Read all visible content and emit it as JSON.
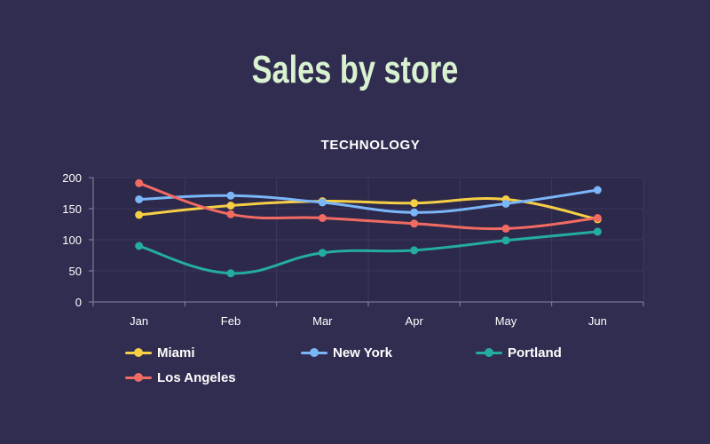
{
  "page": {
    "title": "Sales by store"
  },
  "chart_data": {
    "type": "line",
    "title": "TECHNOLOGY",
    "categories": [
      "Jan",
      "Feb",
      "Mar",
      "Apr",
      "May",
      "Jun"
    ],
    "ylim": [
      0,
      200
    ],
    "yticks": [
      0,
      50,
      100,
      150,
      200
    ],
    "grid": true,
    "smooth": true,
    "legend_position": "bottom",
    "series": [
      {
        "name": "Miami",
        "color": "#f6cf45",
        "values": [
          140,
          155,
          162,
          159,
          165,
          133
        ]
      },
      {
        "name": "New York",
        "color": "#7ab6f8",
        "values": [
          165,
          171,
          160,
          144,
          158,
          180
        ]
      },
      {
        "name": "Portland",
        "color": "#24ad9f",
        "values": [
          90,
          46,
          79,
          83,
          99,
          113
        ]
      },
      {
        "name": "Los Angeles",
        "color": "#f26b63",
        "values": [
          191,
          141,
          135,
          126,
          118,
          135
        ]
      }
    ]
  }
}
